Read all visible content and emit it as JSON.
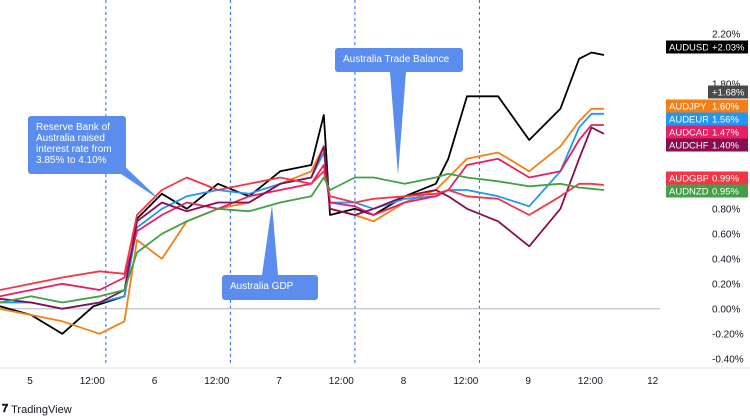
{
  "branding": {
    "logo_mark": "𝟕",
    "name": "TradingView"
  },
  "chart_data": {
    "type": "line",
    "title": "",
    "xlabel": "",
    "ylabel": "",
    "x_ticks": [
      "5",
      "12:00",
      "6",
      "12:00",
      "7",
      "12:00",
      "8",
      "12:00",
      "9",
      "12:00",
      "12"
    ],
    "x_range": [
      0,
      10.6
    ],
    "y_ticks": [
      "2.20%",
      "1.80%",
      "1.40%",
      "1.00%",
      "0.80%",
      "0.60%",
      "0.40%",
      "0.20%",
      "0.00%",
      "-0.20%",
      "-0.40%"
    ],
    "y_tick_values": [
      2.2,
      1.8,
      1.4,
      1.0,
      0.8,
      0.6,
      0.4,
      0.2,
      0.0,
      -0.2,
      -0.4
    ],
    "ylim": [
      -0.45,
      2.35
    ],
    "grid": false,
    "zero_line": 0.0,
    "event_lines_x": [
      1.7,
      3.7,
      5.7,
      7.7
    ],
    "extra_badge": {
      "label": "+1.68%",
      "value": 1.68,
      "color": "#4a4a4a"
    },
    "annotations": [
      {
        "name": "rba",
        "text": [
          "Reserve Bank of",
          "Australia raised",
          "interest rate from",
          "3.85% to 4.10%"
        ],
        "x": 2.3,
        "y": 0.78
      },
      {
        "name": "gdp",
        "text": [
          "Australia GDP"
        ],
        "x": 4.15,
        "y": 0.82
      },
      {
        "name": "trade",
        "text": [
          "Australia Trade Balance"
        ],
        "x": 6.0,
        "y": 1.05
      }
    ],
    "series": [
      {
        "name": "AUDUSD",
        "label": "+2.03%",
        "color": "#000000",
        "values": [
          [
            0,
            0.02
          ],
          [
            0.5,
            -0.05
          ],
          [
            1,
            -0.2
          ],
          [
            1.5,
            0.02
          ],
          [
            2.0,
            0.1
          ],
          [
            2.2,
            0.72
          ],
          [
            2.6,
            0.92
          ],
          [
            3.0,
            0.8
          ],
          [
            3.5,
            1.0
          ],
          [
            4.0,
            0.9
          ],
          [
            4.5,
            1.1
          ],
          [
            5.0,
            1.15
          ],
          [
            5.2,
            1.55
          ],
          [
            5.3,
            0.75
          ],
          [
            5.7,
            0.8
          ],
          [
            6.0,
            0.75
          ],
          [
            6.5,
            0.9
          ],
          [
            7.0,
            1.0
          ],
          [
            7.2,
            1.2
          ],
          [
            7.5,
            1.7
          ],
          [
            8.0,
            1.7
          ],
          [
            8.5,
            1.35
          ],
          [
            9.0,
            1.6
          ],
          [
            9.3,
            2.0
          ],
          [
            9.5,
            2.05
          ],
          [
            9.7,
            2.03
          ]
        ]
      },
      {
        "name": "AUDJPY",
        "label": "1.60%",
        "color": "#f57f17",
        "values": [
          [
            0,
            0.0
          ],
          [
            0.5,
            -0.05
          ],
          [
            1,
            -0.1
          ],
          [
            1.6,
            -0.2
          ],
          [
            2.0,
            -0.1
          ],
          [
            2.2,
            0.55
          ],
          [
            2.6,
            0.4
          ],
          [
            3.0,
            0.7
          ],
          [
            3.5,
            0.8
          ],
          [
            4.0,
            0.85
          ],
          [
            4.5,
            1.0
          ],
          [
            5.0,
            1.1
          ],
          [
            5.2,
            1.3
          ],
          [
            5.3,
            0.8
          ],
          [
            5.7,
            0.75
          ],
          [
            6.0,
            0.7
          ],
          [
            6.5,
            0.85
          ],
          [
            7.0,
            0.95
          ],
          [
            7.2,
            1.05
          ],
          [
            7.5,
            1.2
          ],
          [
            8.0,
            1.25
          ],
          [
            8.5,
            1.1
          ],
          [
            9.0,
            1.3
          ],
          [
            9.3,
            1.5
          ],
          [
            9.5,
            1.6
          ],
          [
            9.7,
            1.6
          ]
        ]
      },
      {
        "name": "AUDEUR",
        "label": "1.56%",
        "color": "#2196f3",
        "values": [
          [
            0,
            0.05
          ],
          [
            0.5,
            0.05
          ],
          [
            1,
            0.0
          ],
          [
            1.6,
            0.05
          ],
          [
            2.0,
            0.1
          ],
          [
            2.2,
            0.65
          ],
          [
            2.6,
            0.8
          ],
          [
            3.0,
            0.9
          ],
          [
            3.5,
            0.95
          ],
          [
            4.0,
            0.92
          ],
          [
            4.5,
            1.0
          ],
          [
            5.0,
            1.05
          ],
          [
            5.2,
            1.25
          ],
          [
            5.3,
            0.85
          ],
          [
            5.7,
            0.85
          ],
          [
            6.0,
            0.8
          ],
          [
            6.5,
            0.88
          ],
          [
            7.0,
            0.9
          ],
          [
            7.2,
            0.95
          ],
          [
            7.5,
            0.95
          ],
          [
            8.0,
            0.9
          ],
          [
            8.5,
            0.82
          ],
          [
            9.0,
            1.1
          ],
          [
            9.3,
            1.45
          ],
          [
            9.5,
            1.56
          ],
          [
            9.7,
            1.56
          ]
        ]
      },
      {
        "name": "AUDCAD",
        "label": "1.47%",
        "color": "#e91e63",
        "values": [
          [
            0,
            0.1
          ],
          [
            0.5,
            0.15
          ],
          [
            1,
            0.2
          ],
          [
            1.6,
            0.15
          ],
          [
            2.0,
            0.25
          ],
          [
            2.2,
            0.62
          ],
          [
            2.6,
            0.75
          ],
          [
            3.0,
            0.85
          ],
          [
            3.5,
            0.8
          ],
          [
            4.0,
            0.9
          ],
          [
            4.5,
            0.95
          ],
          [
            5.0,
            1.0
          ],
          [
            5.2,
            1.15
          ],
          [
            5.3,
            0.85
          ],
          [
            5.7,
            0.82
          ],
          [
            6.0,
            0.75
          ],
          [
            6.5,
            0.85
          ],
          [
            7.0,
            0.9
          ],
          [
            7.2,
            0.95
          ],
          [
            7.5,
            1.15
          ],
          [
            8.0,
            1.2
          ],
          [
            8.5,
            1.05
          ],
          [
            9.0,
            1.1
          ],
          [
            9.3,
            1.35
          ],
          [
            9.5,
            1.47
          ],
          [
            9.7,
            1.47
          ]
        ]
      },
      {
        "name": "AUDCHF",
        "label": "1.40%",
        "color": "#880e4f",
        "values": [
          [
            0,
            0.08
          ],
          [
            0.5,
            0.05
          ],
          [
            1,
            0.0
          ],
          [
            1.6,
            0.05
          ],
          [
            2.0,
            0.15
          ],
          [
            2.2,
            0.7
          ],
          [
            2.6,
            0.85
          ],
          [
            3.0,
            0.78
          ],
          [
            3.5,
            0.85
          ],
          [
            4.0,
            0.85
          ],
          [
            4.5,
            1.0
          ],
          [
            5.0,
            1.05
          ],
          [
            5.2,
            1.3
          ],
          [
            5.3,
            0.8
          ],
          [
            5.7,
            0.75
          ],
          [
            6.0,
            0.8
          ],
          [
            6.5,
            0.9
          ],
          [
            7.0,
            0.95
          ],
          [
            7.2,
            0.9
          ],
          [
            7.5,
            0.8
          ],
          [
            8.0,
            0.7
          ],
          [
            8.5,
            0.5
          ],
          [
            9.0,
            0.8
          ],
          [
            9.3,
            1.2
          ],
          [
            9.5,
            1.45
          ],
          [
            9.7,
            1.4
          ]
        ]
      },
      {
        "name": "AUDGBP",
        "label": "0.99%",
        "color": "#f23645",
        "values": [
          [
            0,
            0.15
          ],
          [
            0.5,
            0.2
          ],
          [
            1,
            0.25
          ],
          [
            1.6,
            0.3
          ],
          [
            2.0,
            0.28
          ],
          [
            2.2,
            0.75
          ],
          [
            2.6,
            0.95
          ],
          [
            3.0,
            1.05
          ],
          [
            3.5,
            0.95
          ],
          [
            4.0,
            1.0
          ],
          [
            4.5,
            1.05
          ],
          [
            5.0,
            1.0
          ],
          [
            5.2,
            1.1
          ],
          [
            5.3,
            0.9
          ],
          [
            5.7,
            0.85
          ],
          [
            6.0,
            0.88
          ],
          [
            6.5,
            0.9
          ],
          [
            7.0,
            0.92
          ],
          [
            7.2,
            0.95
          ],
          [
            7.5,
            0.9
          ],
          [
            8.0,
            0.88
          ],
          [
            8.5,
            0.75
          ],
          [
            9.0,
            0.9
          ],
          [
            9.3,
            1.0
          ],
          [
            9.5,
            1.0
          ],
          [
            9.7,
            0.99
          ]
        ]
      },
      {
        "name": "AUDNZD",
        "label": "0.95%",
        "color": "#43a047",
        "values": [
          [
            0,
            0.05
          ],
          [
            0.5,
            0.1
          ],
          [
            1,
            0.05
          ],
          [
            1.6,
            0.1
          ],
          [
            2.0,
            0.15
          ],
          [
            2.2,
            0.45
          ],
          [
            2.6,
            0.6
          ],
          [
            3.0,
            0.7
          ],
          [
            3.5,
            0.8
          ],
          [
            4.0,
            0.78
          ],
          [
            4.5,
            0.85
          ],
          [
            5.0,
            0.9
          ],
          [
            5.2,
            1.05
          ],
          [
            5.3,
            0.95
          ],
          [
            5.7,
            1.05
          ],
          [
            6.0,
            1.05
          ],
          [
            6.5,
            1.0
          ],
          [
            7.0,
            1.05
          ],
          [
            7.2,
            1.08
          ],
          [
            7.5,
            1.05
          ],
          [
            8.0,
            1.02
          ],
          [
            8.5,
            0.98
          ],
          [
            9.0,
            1.0
          ],
          [
            9.3,
            0.97
          ],
          [
            9.5,
            0.96
          ],
          [
            9.7,
            0.95
          ]
        ]
      }
    ]
  }
}
